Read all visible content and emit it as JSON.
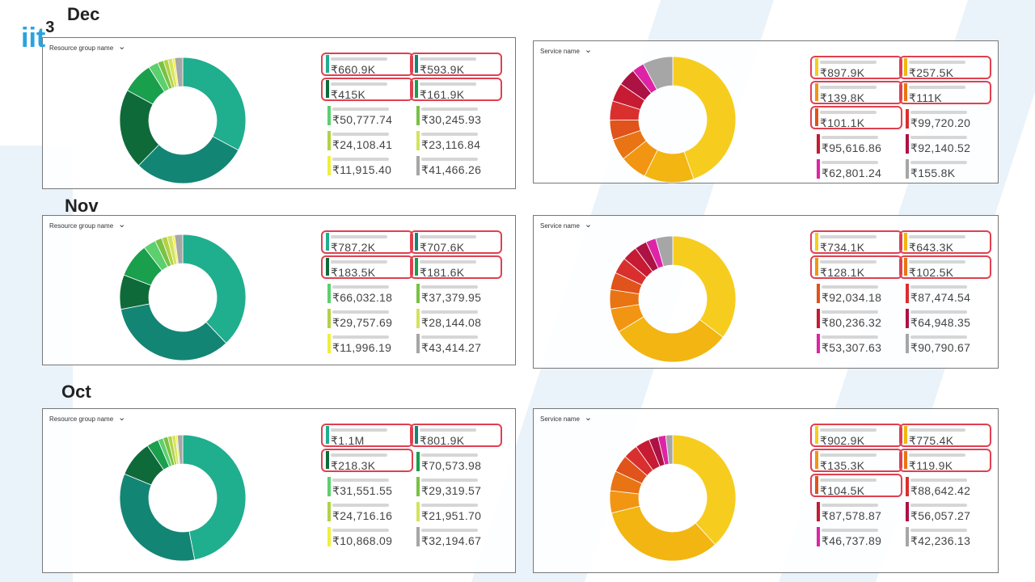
{
  "logo": {
    "text": "3iit",
    "main": "iit",
    "sup": "3"
  },
  "palettes": {
    "resource": [
      "#1fae8e",
      "#138574",
      "#0f6a3a",
      "#1a9f4d",
      "#5ccf6e",
      "#79c244",
      "#b2d245",
      "#d4e35f",
      "#f0ee3c",
      "#a6a6a6"
    ],
    "service": [
      "#f6cd1e",
      "#f2b511",
      "#f29513",
      "#e97413",
      "#e0531a",
      "#d9302f",
      "#c71a33",
      "#ad1244",
      "#dd24a6",
      "#a6a6a6"
    ]
  },
  "months": [
    {
      "label": "Dec",
      "panels": [
        {
          "filter": "Resource group name",
          "kind": "resource",
          "slices": [
            660.9,
            593.9,
            415,
            161.9,
            50.78,
            30.25,
            24.11,
            23.12,
            11.92,
            41.47
          ],
          "legend": [
            {
              "value": "₹660.9K",
              "color_idx": 0,
              "hl": true
            },
            {
              "value": "₹415K",
              "color_idx": 2,
              "hl": true
            },
            {
              "value": "₹50,777.74",
              "color_idx": 4,
              "hl": false
            },
            {
              "value": "₹24,108.41",
              "color_idx": 6,
              "hl": false
            },
            {
              "value": "₹11,915.40",
              "color_idx": 8,
              "hl": false
            },
            {
              "value": "₹593.9K",
              "color_idx": 1,
              "hl": true
            },
            {
              "value": "₹161.9K",
              "color_idx": 3,
              "hl": true
            },
            {
              "value": "₹30,245.93",
              "color_idx": 5,
              "hl": false
            },
            {
              "value": "₹23,116.84",
              "color_idx": 7,
              "hl": false
            },
            {
              "value": "₹41,466.26",
              "color_idx": 9,
              "hl": false
            }
          ]
        },
        {
          "filter": "Service name",
          "kind": "service",
          "slices": [
            897.9,
            257.5,
            139.8,
            111,
            101.1,
            99.72,
            95.62,
            92.14,
            62.8,
            155.8
          ],
          "legend": [
            {
              "value": "₹897.9K",
              "color_idx": 0,
              "hl": true
            },
            {
              "value": "₹139.8K",
              "color_idx": 2,
              "hl": true
            },
            {
              "value": "₹101.1K",
              "color_idx": 4,
              "hl": true
            },
            {
              "value": "₹95,616.86",
              "color_idx": 6,
              "hl": false
            },
            {
              "value": "₹62,801.24",
              "color_idx": 8,
              "hl": false
            },
            {
              "value": "₹257.5K",
              "color_idx": 1,
              "hl": true
            },
            {
              "value": "₹111K",
              "color_idx": 3,
              "hl": true
            },
            {
              "value": "₹99,720.20",
              "color_idx": 5,
              "hl": false
            },
            {
              "value": "₹92,140.52",
              "color_idx": 7,
              "hl": false
            },
            {
              "value": "₹155.8K",
              "color_idx": 9,
              "hl": false
            }
          ]
        }
      ]
    },
    {
      "label": "Nov",
      "panels": [
        {
          "filter": "Resource group name",
          "kind": "resource",
          "slices": [
            787.2,
            707.6,
            183.5,
            181.6,
            66.03,
            37.38,
            29.76,
            28.14,
            12.0,
            43.41
          ],
          "legend": [
            {
              "value": "₹787.2K",
              "color_idx": 0,
              "hl": true
            },
            {
              "value": "₹183.5K",
              "color_idx": 2,
              "hl": true
            },
            {
              "value": "₹66,032.18",
              "color_idx": 4,
              "hl": false
            },
            {
              "value": "₹29,757.69",
              "color_idx": 6,
              "hl": false
            },
            {
              "value": "₹11,996.19",
              "color_idx": 8,
              "hl": false
            },
            {
              "value": "₹707.6K",
              "color_idx": 1,
              "hl": true
            },
            {
              "value": "₹181.6K",
              "color_idx": 3,
              "hl": true
            },
            {
              "value": "₹37,379.95",
              "color_idx": 5,
              "hl": false
            },
            {
              "value": "₹28,144.08",
              "color_idx": 7,
              "hl": false
            },
            {
              "value": "₹43,414.27",
              "color_idx": 9,
              "hl": false
            }
          ]
        },
        {
          "filter": "Service name",
          "kind": "service",
          "slices": [
            734.1,
            643.3,
            128.1,
            102.5,
            92.03,
            87.47,
            80.24,
            64.95,
            53.31,
            90.79
          ],
          "legend": [
            {
              "value": "₹734.1K",
              "color_idx": 0,
              "hl": true
            },
            {
              "value": "₹128.1K",
              "color_idx": 2,
              "hl": true
            },
            {
              "value": "₹92,034.18",
              "color_idx": 4,
              "hl": false
            },
            {
              "value": "₹80,236.32",
              "color_idx": 6,
              "hl": false
            },
            {
              "value": "₹53,307.63",
              "color_idx": 8,
              "hl": false
            },
            {
              "value": "₹643.3K",
              "color_idx": 1,
              "hl": true
            },
            {
              "value": "₹102.5K",
              "color_idx": 3,
              "hl": true
            },
            {
              "value": "₹87,474.54",
              "color_idx": 5,
              "hl": false
            },
            {
              "value": "₹64,948.35",
              "color_idx": 7,
              "hl": false
            },
            {
              "value": "₹90,790.67",
              "color_idx": 9,
              "hl": false
            }
          ]
        }
      ]
    },
    {
      "label": "Oct",
      "panels": [
        {
          "filter": "Resource group name",
          "kind": "resource",
          "slices": [
            1100,
            801.9,
            218.3,
            70.57,
            31.55,
            29.32,
            24.72,
            21.95,
            10.87,
            32.19
          ],
          "legend": [
            {
              "value": "₹1.1M",
              "color_idx": 0,
              "hl": true
            },
            {
              "value": "₹218.3K",
              "color_idx": 2,
              "hl": true
            },
            {
              "value": "₹31,551.55",
              "color_idx": 4,
              "hl": false
            },
            {
              "value": "₹24,716.16",
              "color_idx": 6,
              "hl": false
            },
            {
              "value": "₹10,868.09",
              "color_idx": 8,
              "hl": false
            },
            {
              "value": "₹801.9K",
              "color_idx": 1,
              "hl": true
            },
            {
              "value": "₹70,573.98",
              "color_idx": 3,
              "hl": false
            },
            {
              "value": "₹29,319.57",
              "color_idx": 5,
              "hl": false
            },
            {
              "value": "₹21,951.70",
              "color_idx": 7,
              "hl": false
            },
            {
              "value": "₹32,194.67",
              "color_idx": 9,
              "hl": false
            }
          ]
        },
        {
          "filter": "Service name",
          "kind": "service",
          "slices": [
            902.9,
            775.4,
            135.3,
            119.9,
            104.5,
            88.64,
            87.58,
            56.06,
            46.74,
            42.24
          ],
          "legend": [
            {
              "value": "₹902.9K",
              "color_idx": 0,
              "hl": true
            },
            {
              "value": "₹135.3K",
              "color_idx": 2,
              "hl": true
            },
            {
              "value": "₹104.5K",
              "color_idx": 4,
              "hl": true
            },
            {
              "value": "₹87,578.87",
              "color_idx": 6,
              "hl": false
            },
            {
              "value": "₹46,737.89",
              "color_idx": 8,
              "hl": false
            },
            {
              "value": "₹775.4K",
              "color_idx": 1,
              "hl": true
            },
            {
              "value": "₹119.9K",
              "color_idx": 3,
              "hl": true
            },
            {
              "value": "₹88,642.42",
              "color_idx": 5,
              "hl": false
            },
            {
              "value": "₹56,057.27",
              "color_idx": 7,
              "hl": false
            },
            {
              "value": "₹42,236.13",
              "color_idx": 9,
              "hl": false
            }
          ]
        }
      ]
    }
  ]
}
